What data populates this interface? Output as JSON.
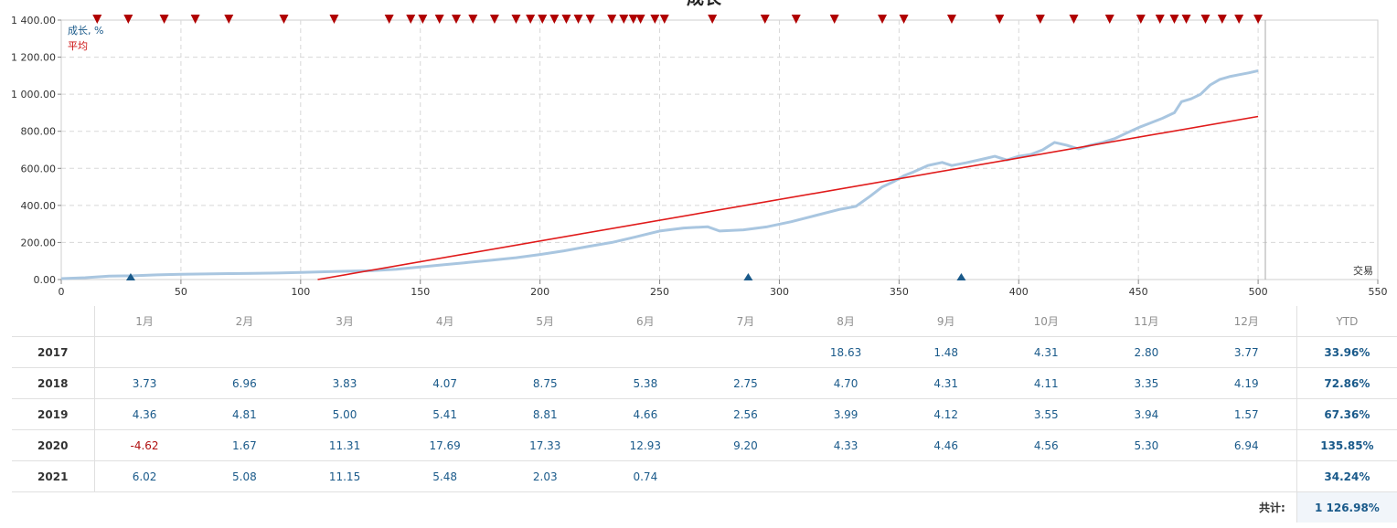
{
  "chart_data": {
    "type": "line",
    "title": "成长",
    "xlabel": "交易",
    "ylabel": "",
    "xlim": [
      0,
      550
    ],
    "ylim": [
      0,
      1400
    ],
    "xticks": [
      0,
      50,
      100,
      150,
      200,
      250,
      300,
      350,
      400,
      450,
      500,
      550
    ],
    "yticks": [
      0,
      200,
      400,
      600,
      800,
      1000,
      1200,
      1400
    ],
    "ytick_labels": [
      "0.00",
      "200.00",
      "400.00",
      "600.00",
      "800.00",
      "1 000.00",
      "1 200.00",
      "1 400.00"
    ],
    "grid": true,
    "legend_position": "top-left",
    "series": [
      {
        "name": "成长, %",
        "color": "#a9c6e0",
        "points": [
          [
            0,
            5
          ],
          [
            10,
            10
          ],
          [
            20,
            18
          ],
          [
            30,
            20
          ],
          [
            40,
            25
          ],
          [
            50,
            28
          ],
          [
            60,
            30
          ],
          [
            70,
            32
          ],
          [
            80,
            33
          ],
          [
            90,
            35
          ],
          [
            100,
            38
          ],
          [
            110,
            42
          ],
          [
            120,
            45
          ],
          [
            130,
            48
          ],
          [
            140,
            55
          ],
          [
            150,
            68
          ],
          [
            160,
            80
          ],
          [
            170,
            92
          ],
          [
            180,
            105
          ],
          [
            190,
            118
          ],
          [
            200,
            135
          ],
          [
            210,
            155
          ],
          [
            220,
            178
          ],
          [
            230,
            200
          ],
          [
            240,
            230
          ],
          [
            250,
            262
          ],
          [
            260,
            278
          ],
          [
            270,
            285
          ],
          [
            275,
            262
          ],
          [
            285,
            268
          ],
          [
            295,
            285
          ],
          [
            305,
            312
          ],
          [
            315,
            345
          ],
          [
            325,
            378
          ],
          [
            332,
            395
          ],
          [
            338,
            450
          ],
          [
            343,
            500
          ],
          [
            348,
            530
          ],
          [
            352,
            560
          ],
          [
            356,
            580
          ],
          [
            362,
            615
          ],
          [
            368,
            632
          ],
          [
            372,
            615
          ],
          [
            378,
            630
          ],
          [
            385,
            650
          ],
          [
            390,
            665
          ],
          [
            395,
            645
          ],
          [
            400,
            665
          ],
          [
            405,
            675
          ],
          [
            410,
            700
          ],
          [
            415,
            740
          ],
          [
            420,
            725
          ],
          [
            425,
            705
          ],
          [
            430,
            725
          ],
          [
            435,
            740
          ],
          [
            440,
            760
          ],
          [
            445,
            790
          ],
          [
            450,
            820
          ],
          [
            455,
            845
          ],
          [
            460,
            870
          ],
          [
            465,
            900
          ],
          [
            468,
            960
          ],
          [
            472,
            975
          ],
          [
            476,
            1000
          ],
          [
            480,
            1050
          ],
          [
            484,
            1080
          ],
          [
            488,
            1095
          ],
          [
            492,
            1105
          ],
          [
            496,
            1115
          ],
          [
            500,
            1127
          ]
        ]
      },
      {
        "name": "平均",
        "color": "#e01a1a",
        "points": [
          [
            0,
            -240
          ],
          [
            500,
            880
          ]
        ]
      }
    ],
    "top_markers_x": [
      15,
      28,
      43,
      56,
      70,
      93,
      114,
      137,
      146,
      151,
      158,
      165,
      172,
      181,
      190,
      196,
      201,
      206,
      211,
      216,
      221,
      230,
      235,
      239,
      242,
      248,
      252,
      272,
      294,
      307,
      323,
      343,
      352,
      372,
      392,
      409,
      423,
      438,
      451,
      459,
      465,
      470,
      478,
      485,
      492,
      500
    ],
    "bottom_markers_x": [
      29,
      287,
      376
    ]
  },
  "table": {
    "months": [
      "1月",
      "2月",
      "3月",
      "4月",
      "5月",
      "6月",
      "7月",
      "8月",
      "9月",
      "10月",
      "11月",
      "12月"
    ],
    "ytd_label": "YTD",
    "rows": [
      {
        "year": "2017",
        "values": [
          "",
          "",
          "",
          "",
          "",
          "",
          "",
          "18.63",
          "1.48",
          "4.31",
          "2.80",
          "3.77"
        ],
        "ytd": "33.96%"
      },
      {
        "year": "2018",
        "values": [
          "3.73",
          "6.96",
          "3.83",
          "4.07",
          "8.75",
          "5.38",
          "2.75",
          "4.70",
          "4.31",
          "4.11",
          "3.35",
          "4.19"
        ],
        "ytd": "72.86%"
      },
      {
        "year": "2019",
        "values": [
          "4.36",
          "4.81",
          "5.00",
          "5.41",
          "8.81",
          "4.66",
          "2.56",
          "3.99",
          "4.12",
          "3.55",
          "3.94",
          "1.57"
        ],
        "ytd": "67.36%"
      },
      {
        "year": "2020",
        "values": [
          "-4.62",
          "1.67",
          "11.31",
          "17.69",
          "17.33",
          "12.93",
          "9.20",
          "4.33",
          "4.46",
          "4.56",
          "5.30",
          "6.94"
        ],
        "ytd": "135.85%"
      },
      {
        "year": "2021",
        "values": [
          "6.02",
          "5.08",
          "11.15",
          "5.48",
          "2.03",
          "0.74",
          "",
          "",
          "",
          "",
          "",
          ""
        ],
        "ytd": "34.24%"
      }
    ],
    "total_label": "共计:",
    "total_value": "1 126.98%"
  }
}
